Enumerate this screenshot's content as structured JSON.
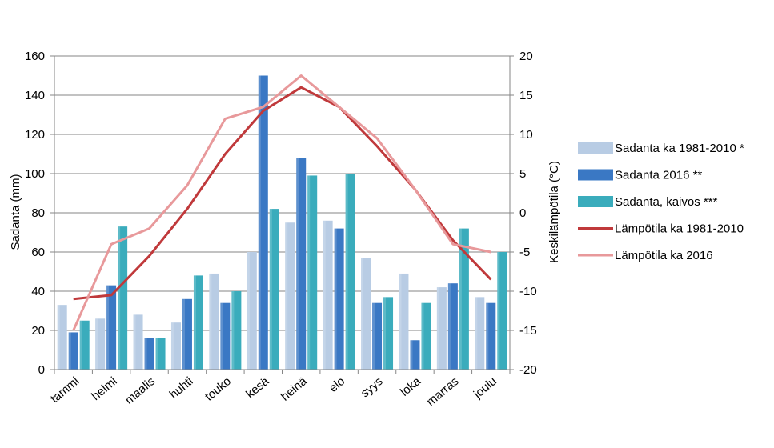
{
  "chart_data": {
    "type": "bar",
    "categories": [
      "tammi",
      "helmi",
      "maalis",
      "huhti",
      "touko",
      "kesä",
      "heinä",
      "elo",
      "syys",
      "loka",
      "marras",
      "joulu"
    ],
    "series": [
      {
        "name": "Sadanta ka 1981-2010 *",
        "type": "bar",
        "axis": "left",
        "color": "#b8cce4",
        "values": [
          33,
          26,
          28,
          24,
          49,
          60,
          75,
          76,
          57,
          49,
          42,
          37
        ]
      },
      {
        "name": "Sadanta 2016 **",
        "type": "bar",
        "axis": "left",
        "color": "#3a78c4",
        "values": [
          19,
          43,
          16,
          36,
          34,
          150,
          108,
          72,
          34,
          15,
          44,
          34
        ]
      },
      {
        "name": "Sadanta, kaivos ***",
        "type": "bar",
        "axis": "left",
        "color": "#3aacbc",
        "values": [
          25,
          73,
          16,
          48,
          40,
          82,
          99,
          100,
          37,
          34,
          72,
          60
        ]
      },
      {
        "name": "Lämpötila ka 1981-2010",
        "type": "line",
        "axis": "right",
        "color": "#c0393b",
        "values": [
          -11,
          -10.5,
          -5.5,
          0.5,
          7.5,
          13,
          16,
          13.5,
          8.5,
          3,
          -3.5,
          -8.5
        ]
      },
      {
        "name": "Lämpötila ka 2016",
        "type": "line",
        "axis": "right",
        "color": "#e8999b",
        "values": [
          -15,
          -4,
          -2,
          3.5,
          12,
          13.5,
          17.5,
          13.5,
          9.5,
          3,
          -4,
          -5
        ]
      }
    ],
    "y_left": {
      "label": "Sadanta (mm)",
      "min": 0,
      "max": 160,
      "ticks": [
        "0",
        "20",
        "40",
        "60",
        "80",
        "100",
        "120",
        "140",
        "160"
      ]
    },
    "y_right": {
      "label": "Keskilämpötila (°C)",
      "min": -20,
      "max": 20,
      "ticks": [
        "-20",
        "-15",
        "-10",
        "-5",
        "0",
        "5",
        "10",
        "15",
        "20"
      ]
    },
    "grid": true,
    "legend_position": "right"
  }
}
